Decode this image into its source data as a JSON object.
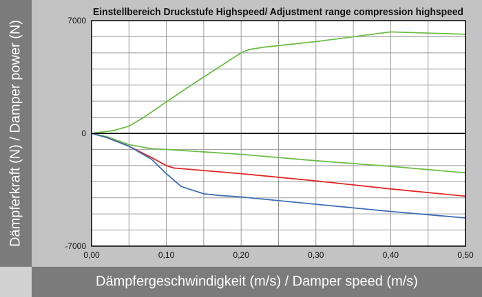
{
  "chart_data": {
    "type": "line",
    "title": "Einstellbereich Druckstufe Highspeed/ Adjustment range compression highspeed",
    "xlabel": "Dämpfergeschwindigkeit (m/s) / Damper speed (m/s)",
    "ylabel": "Dämpferkraft (N) / Damper power (N)",
    "xlim": [
      0,
      0.5
    ],
    "ylim": [
      -7000,
      7000
    ],
    "xticks": [
      "0,00",
      "0,10",
      "0,20",
      "0,30",
      "0,40",
      "0,50"
    ],
    "xtick_values": [
      0,
      0.1,
      0.2,
      0.3,
      0.4,
      0.5
    ],
    "yticks": [
      "7000",
      "0",
      "-7000"
    ],
    "ytick_values": [
      7000,
      0,
      -7000
    ],
    "grid": true,
    "series": [
      {
        "color": "#6dbd45",
        "x": [
          0,
          0.03,
          0.05,
          0.07,
          0.1,
          0.13,
          0.16,
          0.19,
          0.2,
          0.21,
          0.23,
          0.3,
          0.4,
          0.5
        ],
        "y": [
          0,
          180,
          450,
          1000,
          1950,
          2900,
          3800,
          4700,
          5000,
          5200,
          5350,
          5700,
          6300,
          6150
        ]
      },
      {
        "color": "#6dbd45",
        "x": [
          0,
          0.02,
          0.05,
          0.08,
          0.1,
          0.2,
          0.3,
          0.4,
          0.5
        ],
        "y": [
          0,
          -200,
          -700,
          -950,
          -1000,
          -1300,
          -1700,
          -2050,
          -2450
        ]
      },
      {
        "color": "#e32424",
        "x": [
          0,
          0.02,
          0.05,
          0.08,
          0.1,
          0.11,
          0.2,
          0.3,
          0.4,
          0.5
        ],
        "y": [
          0,
          -250,
          -800,
          -1500,
          -2000,
          -2150,
          -2500,
          -2950,
          -3450,
          -3900
        ]
      },
      {
        "color": "#3d6db5",
        "x": [
          0,
          0.02,
          0.05,
          0.08,
          0.1,
          0.12,
          0.15,
          0.17,
          0.2,
          0.3,
          0.4,
          0.5
        ],
        "y": [
          0,
          -250,
          -800,
          -1600,
          -2500,
          -3300,
          -3750,
          -3850,
          -3950,
          -4400,
          -4850,
          -5250
        ]
      }
    ]
  }
}
